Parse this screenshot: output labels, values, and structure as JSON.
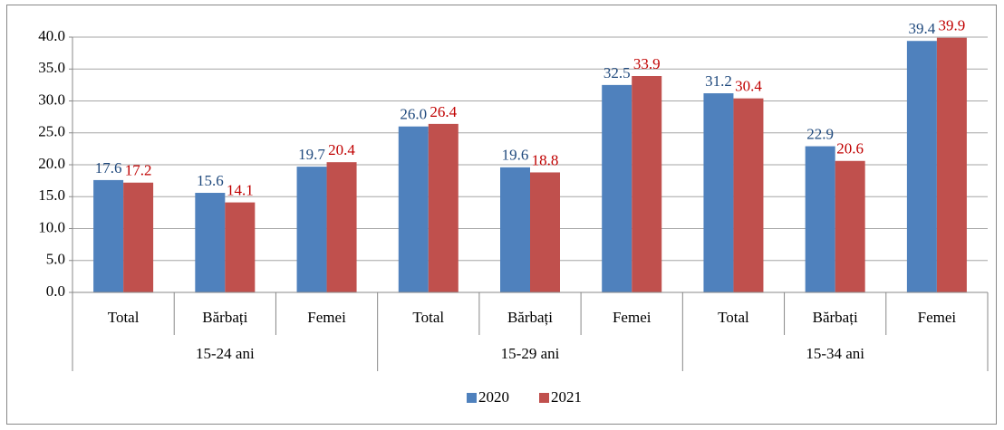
{
  "chart_data": {
    "type": "bar",
    "categories": [
      "Total",
      "Bărbați",
      "Femei",
      "Total",
      "Bărbați",
      "Femei",
      "Total",
      "Bărbați",
      "Femei"
    ],
    "groups": [
      {
        "name": "15-24 ani",
        "size": 3
      },
      {
        "name": "15-29 ani",
        "size": 3
      },
      {
        "name": "15-34 ani",
        "size": 3
      }
    ],
    "series": [
      {
        "name": "2020",
        "color": "#4f81bd",
        "label_color": "#1f497d",
        "values": [
          17.6,
          15.6,
          19.7,
          26.0,
          19.6,
          32.5,
          31.2,
          22.9,
          39.4
        ],
        "value_labels": [
          "17.6",
          "15.6",
          "19.7",
          "26.0",
          "19.6",
          "32.5",
          "31.2",
          "22.9",
          "39.4"
        ]
      },
      {
        "name": "2021",
        "color": "#c0504d",
        "label_color": "#c00000",
        "values": [
          17.2,
          14.1,
          20.4,
          26.4,
          18.8,
          33.9,
          30.4,
          20.6,
          39.9
        ],
        "value_labels": [
          "17.2",
          "14.1",
          "20.4",
          "26.4",
          "18.8",
          "33.9",
          "30.4",
          "20.6",
          "39.9"
        ]
      }
    ],
    "ylim": [
      0,
      40
    ],
    "yticks": [
      {
        "value": 0,
        "label": "0.0"
      },
      {
        "value": 5,
        "label": "5.0"
      },
      {
        "value": 10,
        "label": "10.0"
      },
      {
        "value": 15,
        "label": "15.0"
      },
      {
        "value": 20,
        "label": "20.0"
      },
      {
        "value": 25,
        "label": "25.0"
      },
      {
        "value": 30,
        "label": "30.0"
      },
      {
        "value": 35,
        "label": "35.0"
      },
      {
        "value": 40,
        "label": "40.0"
      }
    ],
    "grid": true,
    "legend": "bottom"
  }
}
